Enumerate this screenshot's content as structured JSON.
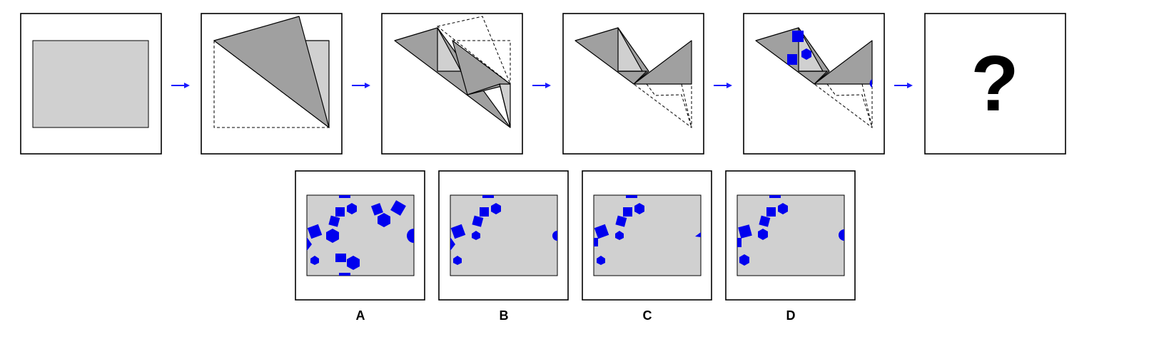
{
  "question_mark": "?",
  "options": [
    {
      "label": "A"
    },
    {
      "label": "B"
    },
    {
      "label": "C"
    },
    {
      "label": "D"
    }
  ],
  "colors": {
    "paper": "#d0d0d0",
    "folded_layer": "#a0a0a0",
    "hole": "#0000ee",
    "arrow": "#1a1aff"
  },
  "icons": [
    "right-arrow-icon",
    "question-mark-icon",
    "square-hole",
    "hexagon-hole",
    "circle-hole"
  ]
}
